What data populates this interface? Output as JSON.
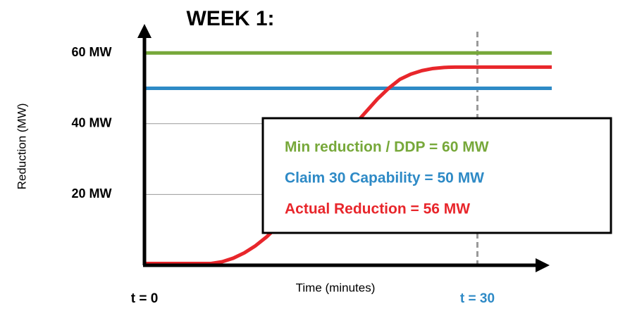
{
  "chart_data": {
    "type": "line",
    "title": "WEEK 1:",
    "y_label": "Reduction (MW)",
    "x_label": "Time (minutes)",
    "xlim": [
      0,
      36.7
    ],
    "ylim": [
      0,
      67
    ],
    "yticks": [
      {
        "value": 20,
        "label": "20 MW"
      },
      {
        "value": 40,
        "label": "40 MW"
      },
      {
        "value": 60,
        "label": "60 MW"
      }
    ],
    "xticks": [
      {
        "value": 0,
        "label": "t = 0"
      },
      {
        "value": 30,
        "label": "t = 30"
      }
    ],
    "xtick_colors": [
      "#000000",
      "#2e8ac6"
    ],
    "vlines": [
      30
    ],
    "grid": true,
    "series": [
      {
        "name": "Min reduction /  DDP = 60 MW",
        "color": "#77a83a",
        "x": [
          0,
          36.7
        ],
        "values": [
          60,
          60
        ]
      },
      {
        "name": "Claim 30 Capability  = 50 MW",
        "color": "#2e8ac6",
        "x": [
          0,
          36.7
        ],
        "values": [
          50,
          50
        ]
      },
      {
        "name": "Actual Reduction = 56 MW",
        "color": "#e8262b",
        "x": [
          0,
          2,
          4,
          6,
          7,
          8,
          9,
          10,
          11,
          12,
          13,
          14,
          15,
          16,
          17,
          18,
          19,
          20,
          21,
          22,
          23,
          24,
          25,
          26,
          27,
          28,
          30,
          32,
          34,
          36.7
        ],
        "values": [
          0.5,
          0.5,
          0.5,
          0.5,
          1,
          2,
          3.5,
          5.5,
          8,
          11,
          14.5,
          18.5,
          22.5,
          27,
          31.5,
          36,
          40,
          43.5,
          47,
          50,
          52.5,
          54,
          55,
          55.6,
          55.9,
          56,
          56,
          56,
          56,
          56
        ]
      }
    ]
  }
}
